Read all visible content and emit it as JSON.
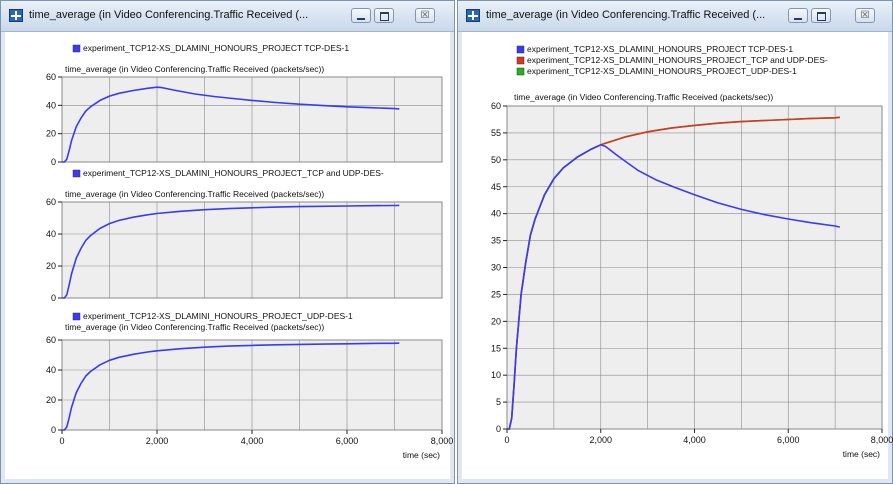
{
  "windows": {
    "left": {
      "title": "time_average (in Video Conferencing.Traffic Received (...",
      "controls": {
        "close": "☒"
      }
    },
    "right": {
      "title": "time_average (in Video Conferencing.Traffic Received (...",
      "controls": {
        "close": "☒"
      }
    }
  },
  "colors": {
    "blue": "#3a3af5",
    "red": "#d43a1e",
    "green": "#22b422",
    "grid": "#8c8c8c",
    "plot_bg": "#eeeeee"
  },
  "chart_data": [
    {
      "type": "line",
      "legend": [
        {
          "label": "experiment_TCP12-XS_DLAMINI_HONOURS_PROJECT TCP-DES-1",
          "color": "#3a3af5"
        }
      ],
      "title": "time_average (in Video Conferencing.Traffic Received (packets/sec))",
      "xlabel": "",
      "ylabel": "",
      "xlim": [
        0,
        8000
      ],
      "ylim": [
        0,
        60
      ],
      "x_ticks": [],
      "x_tick_labels": [],
      "y_ticks": [
        0,
        20,
        40,
        60
      ],
      "y_tick_labels": [
        "0",
        "20",
        "40",
        "60"
      ],
      "grid": true,
      "series": [
        {
          "color": "#3a3af5",
          "x": [
            0,
            50,
            100,
            150,
            200,
            300,
            400,
            500,
            600,
            800,
            1000,
            1200,
            1500,
            1800,
            2000,
            2100,
            2400,
            2800,
            3200,
            3600,
            4000,
            4500,
            5000,
            5500,
            6000,
            6500,
            7000,
            7100
          ],
          "y": [
            0,
            0,
            2,
            8,
            15,
            25,
            31,
            36,
            39,
            43.5,
            46.5,
            48.5,
            50.5,
            52,
            52.8,
            52.5,
            50.5,
            48,
            46.2,
            44.8,
            43.5,
            42,
            40.8,
            39.8,
            39,
            38.3,
            37.7,
            37.5
          ]
        }
      ]
    },
    {
      "type": "line",
      "legend": [
        {
          "label": "experiment_TCP12-XS_DLAMINI_HONOURS_PROJECT_TCP and UDP-DES-",
          "color": "#3a3af5"
        }
      ],
      "title": "time_average (in Video Conferencing.Traffic Received (packets/sec))",
      "xlabel": "",
      "ylabel": "",
      "xlim": [
        0,
        8000
      ],
      "ylim": [
        0,
        60
      ],
      "x_ticks": [],
      "x_tick_labels": [],
      "y_ticks": [
        0,
        20,
        40,
        60
      ],
      "y_tick_labels": [
        "0",
        "20",
        "40",
        "60"
      ],
      "grid": true,
      "series": [
        {
          "color": "#3a3af5",
          "x": [
            0,
            50,
            100,
            150,
            200,
            300,
            400,
            500,
            600,
            800,
            1000,
            1200,
            1500,
            1800,
            2000,
            2500,
            3000,
            3500,
            4000,
            4500,
            5000,
            5500,
            6000,
            6500,
            7000,
            7100
          ],
          "y": [
            0,
            0,
            2,
            8,
            15,
            25,
            31,
            36,
            39,
            43.5,
            46.5,
            48.5,
            50.5,
            52,
            52.8,
            54.2,
            55.2,
            55.9,
            56.4,
            56.8,
            57.1,
            57.3,
            57.5,
            57.7,
            57.8,
            57.9
          ]
        }
      ]
    },
    {
      "type": "line",
      "legend": [
        {
          "label": "experiment_TCP12-XS_DLAMINI_HONOURS_PROJECT_UDP-DES-1",
          "color": "#3a3af5"
        }
      ],
      "title": "time_average (in Video Conferencing.Traffic Received (packets/sec))",
      "xlabel": "time (sec)",
      "ylabel": "",
      "xlim": [
        0,
        8000
      ],
      "ylim": [
        0,
        60
      ],
      "x_ticks": [
        0,
        2000,
        4000,
        6000,
        8000
      ],
      "x_tick_labels": [
        "0",
        "2,000",
        "4,000",
        "6,000",
        "8,000"
      ],
      "y_ticks": [
        0,
        20,
        40,
        60
      ],
      "y_tick_labels": [
        "0",
        "20",
        "40",
        "60"
      ],
      "grid": true,
      "series": [
        {
          "color": "#3a3af5",
          "x": [
            0,
            50,
            100,
            150,
            200,
            300,
            400,
            500,
            600,
            800,
            1000,
            1200,
            1500,
            1800,
            2000,
            2500,
            3000,
            3500,
            4000,
            4500,
            5000,
            5500,
            6000,
            6500,
            7000,
            7100
          ],
          "y": [
            0,
            0,
            2,
            8,
            15,
            25,
            31,
            36,
            39,
            43.5,
            46.5,
            48.5,
            50.5,
            52,
            52.8,
            54.2,
            55.2,
            55.9,
            56.4,
            56.8,
            57.1,
            57.3,
            57.5,
            57.7,
            57.8,
            57.9
          ]
        }
      ]
    },
    {
      "type": "line",
      "legend": [
        {
          "label": "experiment_TCP12-XS_DLAMINI_HONOURS_PROJECT TCP-DES-1",
          "color": "#3a3af5"
        },
        {
          "label": "experiment_TCP12-XS_DLAMINI_HONOURS_PROJECT_TCP and UDP-DES-",
          "color": "#d43a1e"
        },
        {
          "label": "experiment_TCP12-XS_DLAMINI_HONOURS_PROJECT_UDP-DES-1",
          "color": "#22b422"
        }
      ],
      "title": "time_average (in Video Conferencing.Traffic Received (packets/sec))",
      "xlabel": "time (sec)",
      "ylabel": "",
      "xlim": [
        0,
        8000
      ],
      "ylim": [
        0,
        60
      ],
      "x_ticks": [
        0,
        2000,
        4000,
        6000,
        8000
      ],
      "x_tick_labels": [
        "0",
        "2,000",
        "4,000",
        "6,000",
        "8,000"
      ],
      "y_ticks": [
        0,
        5,
        10,
        15,
        20,
        25,
        30,
        35,
        40,
        45,
        50,
        55,
        60
      ],
      "y_tick_labels": [
        "0",
        "5",
        "10",
        "15",
        "20",
        "25",
        "30",
        "35",
        "40",
        "45",
        "50",
        "55",
        "60"
      ],
      "grid": true,
      "series": [
        {
          "color": "#22b422",
          "x": [
            0,
            50,
            100,
            150,
            200,
            300,
            400,
            500,
            600,
            800,
            1000,
            1200,
            1500,
            1800,
            2000,
            2500,
            3000,
            3500,
            4000,
            4500,
            5000,
            5500,
            6000,
            6500,
            7000,
            7100
          ],
          "y": [
            0,
            0,
            2,
            8,
            15,
            25,
            31,
            36,
            39,
            43.5,
            46.5,
            48.5,
            50.5,
            52,
            52.8,
            54.2,
            55.2,
            55.9,
            56.4,
            56.8,
            57.1,
            57.3,
            57.5,
            57.7,
            57.8,
            57.9
          ]
        },
        {
          "color": "#d43a1e",
          "x": [
            0,
            50,
            100,
            150,
            200,
            300,
            400,
            500,
            600,
            800,
            1000,
            1200,
            1500,
            1800,
            2000,
            2500,
            3000,
            3500,
            4000,
            4500,
            5000,
            5500,
            6000,
            6500,
            7000,
            7100
          ],
          "y": [
            0,
            0,
            2,
            8,
            15,
            25,
            31,
            36,
            39,
            43.5,
            46.5,
            48.5,
            50.5,
            52,
            52.8,
            54.2,
            55.2,
            55.9,
            56.4,
            56.8,
            57.1,
            57.3,
            57.5,
            57.7,
            57.8,
            57.9
          ]
        },
        {
          "color": "#3a3af5",
          "x": [
            0,
            50,
            100,
            150,
            200,
            300,
            400,
            500,
            600,
            800,
            1000,
            1200,
            1500,
            1800,
            2000,
            2100,
            2400,
            2800,
            3200,
            3600,
            4000,
            4500,
            5000,
            5500,
            6000,
            6500,
            7000,
            7100
          ],
          "y": [
            0,
            0,
            2,
            8,
            15,
            25,
            31,
            36,
            39,
            43.5,
            46.5,
            48.5,
            50.5,
            52,
            52.8,
            52.5,
            50.5,
            48,
            46.2,
            44.8,
            43.5,
            42,
            40.8,
            39.8,
            39,
            38.3,
            37.7,
            37.5
          ]
        }
      ]
    }
  ]
}
